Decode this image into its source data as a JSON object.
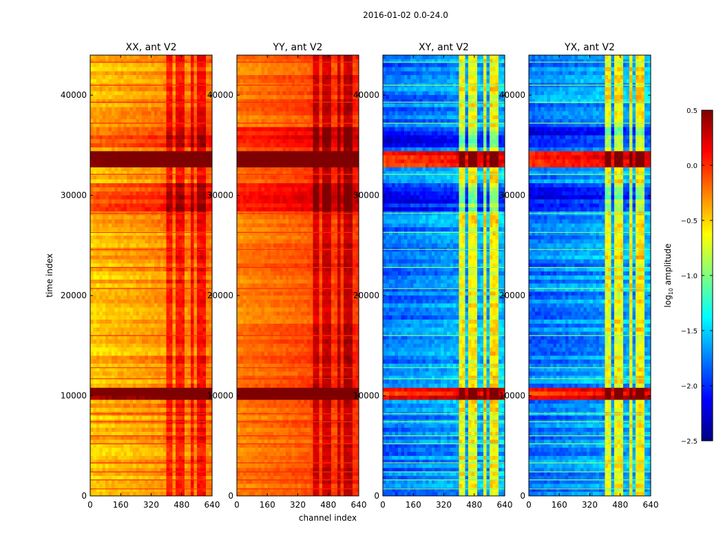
{
  "figure_title": "2016-01-02 0.0-24.0",
  "colors": {
    "jet_stops": [
      "#00007f",
      "#0000ff",
      "#007fff",
      "#00ffff",
      "#7fff7f",
      "#ffff00",
      "#ff7f00",
      "#ff0000",
      "#7f0000"
    ],
    "axis_frame": "#000000",
    "background": "#ffffff"
  },
  "chart_data": {
    "type": "heatmap",
    "title": "2016-01-02 0.0-24.0",
    "xlabel": "channel index",
    "ylabel": "time index",
    "xlim": [
      0,
      640
    ],
    "ylim": [
      0,
      44000
    ],
    "xticks": [
      "0",
      "160",
      "320",
      "480",
      "640"
    ],
    "yticks": [
      "0",
      "10000",
      "20000",
      "30000",
      "40000"
    ],
    "colorbar": {
      "label_prefix": "log",
      "label_sub": "10",
      "label_suffix": " amplitude",
      "vmin": -2.5,
      "vmax": 0.5,
      "ticks": [
        "0.5",
        "0.0",
        "−0.5",
        "−1.0",
        "−1.5",
        "−2.0",
        "−2.5"
      ],
      "tick_values": [
        0.5,
        0.0,
        -0.5,
        -1.0,
        -1.5,
        -2.0,
        -2.5
      ]
    },
    "panels": [
      {
        "name": "XX",
        "title": "XX, ant V2",
        "base": -0.45,
        "spread": 0.25
      },
      {
        "name": "YY",
        "title": "YY, ant V2",
        "base": -0.25,
        "spread": 0.2
      },
      {
        "name": "XY",
        "title": "XY, ant V2",
        "base": -1.8,
        "spread": 0.35
      },
      {
        "name": "YX",
        "title": "YX, ant V2",
        "base": -1.8,
        "spread": 0.35
      }
    ],
    "rfi_channel_bands": [
      [
        395,
        430
      ],
      [
        450,
        475
      ],
      [
        480,
        500
      ],
      [
        525,
        545
      ],
      [
        560,
        585
      ],
      [
        600,
        612
      ]
    ],
    "strong_time_bands": [
      [
        9500,
        10800
      ],
      [
        33000,
        34300
      ],
      [
        17900,
        18200
      ]
    ],
    "elevated_time_ranges": [
      [
        28500,
        31000
      ],
      [
        35000,
        36700
      ]
    ],
    "flagged_time_rows": [
      700,
      1600,
      2400,
      3300,
      5200,
      6000,
      7400,
      8200,
      11700,
      12800,
      16000,
      20700,
      22800,
      24600,
      26300,
      28200,
      32100,
      37200,
      39300,
      41000,
      43300
    ]
  }
}
